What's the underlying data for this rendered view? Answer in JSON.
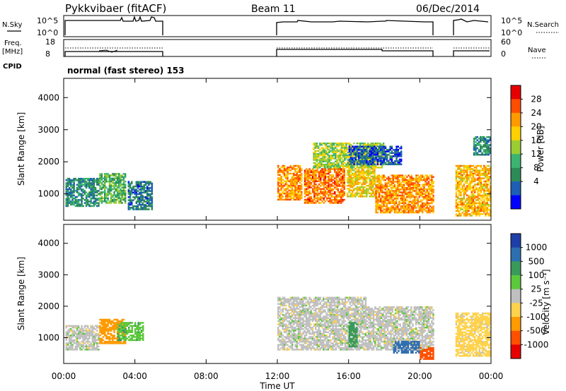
{
  "header": {
    "station": "Pykkvibaer (fitACF)",
    "beam": "Beam 11",
    "date": "06/Dec/2014"
  },
  "noise_panel": {
    "left_label": "N.Sky",
    "right_label": "N.Search",
    "left_ticks": [
      "10^5",
      "10^0"
    ],
    "right_ticks": [
      "10^5",
      "10^0"
    ]
  },
  "freq_panel": {
    "left_label_1": "Freq.",
    "left_label_2": "[MHz]",
    "right_label": "Nave",
    "left_ticks": [
      "18",
      "8"
    ],
    "right_ticks": [
      "60",
      "0"
    ]
  },
  "cpid": {
    "label": "CPID",
    "text": "normal (fast stereo) 153"
  },
  "axes": {
    "ylabel": "Slant Range [km]",
    "y_ticks": [
      "1000",
      "2000",
      "3000",
      "4000"
    ],
    "x_ticks": [
      "00:00",
      "04:00",
      "08:00",
      "12:00",
      "16:00",
      "20:00",
      "00:00"
    ],
    "xlabel": "Time UT"
  },
  "colorbars": {
    "power": {
      "label": "Power [dB]",
      "ticks": [
        "28",
        "24",
        "20",
        "16",
        "12",
        "8",
        "4"
      ],
      "colors": [
        "#e60000",
        "#ff4d00",
        "#ff9a00",
        "#ffd000",
        "#9acd32",
        "#3cb371",
        "#2e8b57",
        "#1e5fb4",
        "#0000ff"
      ]
    },
    "velocity": {
      "label": "Velocity [m s⁻¹]",
      "ticks": [
        "1000",
        "500",
        "100",
        "25",
        "-25",
        "-100",
        "-500",
        "-1000"
      ],
      "colors": [
        "#1f3fa8",
        "#2e6fb0",
        "#3a9a5a",
        "#5cc83c",
        "#c0c0c0",
        "#ffd24d",
        "#ff9a00",
        "#ff5000",
        "#e60000"
      ]
    }
  },
  "chart_data": {
    "type": "heatmap",
    "title": "Pykkvibaer (fitACF)  Beam 11  06/Dec/2014",
    "xlabel": "Time UT",
    "ylabel": "Slant Range [km]",
    "xlim_hours": [
      0,
      24
    ],
    "ylim_km": [
      180,
      4600
    ],
    "data_intervals_hours": [
      [
        0,
        5.5
      ],
      [
        12,
        20.9
      ],
      [
        21.8,
        24
      ]
    ],
    "power_regions": [
      {
        "t0": 0.1,
        "t1": 2.0,
        "r0": 600,
        "r1": 1500,
        "power_db": 10
      },
      {
        "t0": 2.0,
        "t1": 3.5,
        "r0": 700,
        "r1": 1650,
        "power_db": 14
      },
      {
        "t0": 3.6,
        "t1": 5.0,
        "r0": 500,
        "r1": 1400,
        "power_db": 8
      },
      {
        "t0": 12.0,
        "t1": 13.4,
        "r0": 800,
        "r1": 1900,
        "power_db": 26
      },
      {
        "t0": 13.5,
        "t1": 15.8,
        "r0": 700,
        "r1": 1800,
        "power_db": 28
      },
      {
        "t0": 15.9,
        "t1": 17.5,
        "r0": 900,
        "r1": 2000,
        "power_db": 22
      },
      {
        "t0": 17.5,
        "t1": 20.8,
        "r0": 400,
        "r1": 1600,
        "power_db": 26
      },
      {
        "t0": 14.0,
        "t1": 18.0,
        "r0": 1800,
        "r1": 2600,
        "power_db": 18
      },
      {
        "t0": 16.0,
        "t1": 19.0,
        "r0": 1900,
        "r1": 2500,
        "power_db": 6
      },
      {
        "t0": 22.0,
        "t1": 24.0,
        "r0": 300,
        "r1": 1900,
        "power_db": 24
      },
      {
        "t0": 23.0,
        "t1": 24.0,
        "r0": 2200,
        "r1": 2800,
        "power_db": 10
      }
    ],
    "velocity_regions": [
      {
        "t0": 0.1,
        "t1": 2.0,
        "r0": 600,
        "r1": 1400,
        "velocity": 0
      },
      {
        "t0": 2.0,
        "t1": 3.5,
        "r0": 800,
        "r1": 1600,
        "velocity": -200
      },
      {
        "t0": 3.0,
        "t1": 4.5,
        "r0": 900,
        "r1": 1500,
        "velocity": 80
      },
      {
        "t0": 12.0,
        "t1": 17.0,
        "r0": 600,
        "r1": 2300,
        "velocity": 0
      },
      {
        "t0": 16.0,
        "t1": 16.5,
        "r0": 700,
        "r1": 1500,
        "velocity": 400
      },
      {
        "t0": 17.0,
        "t1": 20.8,
        "r0": 600,
        "r1": 2000,
        "velocity": 0
      },
      {
        "t0": 18.5,
        "t1": 20.0,
        "r0": 500,
        "r1": 900,
        "velocity": 600
      },
      {
        "t0": 20.0,
        "t1": 20.8,
        "r0": 300,
        "r1": 700,
        "velocity": -600
      },
      {
        "t0": 22.0,
        "t1": 24.0,
        "r0": 400,
        "r1": 1800,
        "velocity": -50
      }
    ]
  }
}
